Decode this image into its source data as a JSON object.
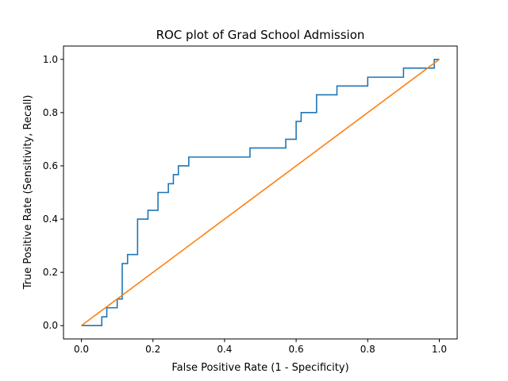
{
  "chart_data": {
    "type": "line",
    "title": "ROC plot of Grad School Admission",
    "xlabel": "False Positive Rate (1 - Specificity)",
    "ylabel": "True Positive Rate (Sensitivity, Recall)",
    "xlim": [
      -0.05,
      1.05
    ],
    "ylim": [
      -0.05,
      1.05
    ],
    "xticks": [
      0.0,
      0.2,
      0.4,
      0.6,
      0.8,
      1.0
    ],
    "yticks": [
      0.0,
      0.2,
      0.4,
      0.6,
      0.8,
      1.0
    ],
    "xtick_labels": [
      "0.0",
      "0.2",
      "0.4",
      "0.6",
      "0.8",
      "1.0"
    ],
    "ytick_labels": [
      "0.0",
      "0.2",
      "0.4",
      "0.6",
      "0.8",
      "1.0"
    ],
    "grid": false,
    "series": [
      {
        "color": "#1f77b4",
        "x": [
          0.0,
          0.014,
          0.014,
          0.057,
          0.057,
          0.071,
          0.071,
          0.1,
          0.1,
          0.114,
          0.114,
          0.129,
          0.129,
          0.157,
          0.157,
          0.186,
          0.186,
          0.214,
          0.214,
          0.243,
          0.243,
          0.257,
          0.257,
          0.271,
          0.271,
          0.3,
          0.3,
          0.471,
          0.471,
          0.571,
          0.571,
          0.6,
          0.6,
          0.614,
          0.614,
          0.657,
          0.657,
          0.714,
          0.714,
          0.8,
          0.8,
          0.9,
          0.9,
          0.986,
          0.986,
          1.0
        ],
        "y": [
          0.0,
          0.0,
          0.0,
          0.0,
          0.033,
          0.033,
          0.067,
          0.067,
          0.1,
          0.1,
          0.233,
          0.233,
          0.267,
          0.267,
          0.4,
          0.4,
          0.433,
          0.433,
          0.5,
          0.5,
          0.533,
          0.533,
          0.567,
          0.567,
          0.6,
          0.6,
          0.633,
          0.633,
          0.667,
          0.667,
          0.7,
          0.7,
          0.767,
          0.767,
          0.8,
          0.8,
          0.867,
          0.867,
          0.9,
          0.9,
          0.933,
          0.933,
          0.967,
          0.967,
          1.0,
          1.0
        ]
      },
      {
        "color": "#ff7f0e",
        "x": [
          0.0,
          1.0
        ],
        "y": [
          0.0,
          1.0
        ]
      }
    ]
  }
}
